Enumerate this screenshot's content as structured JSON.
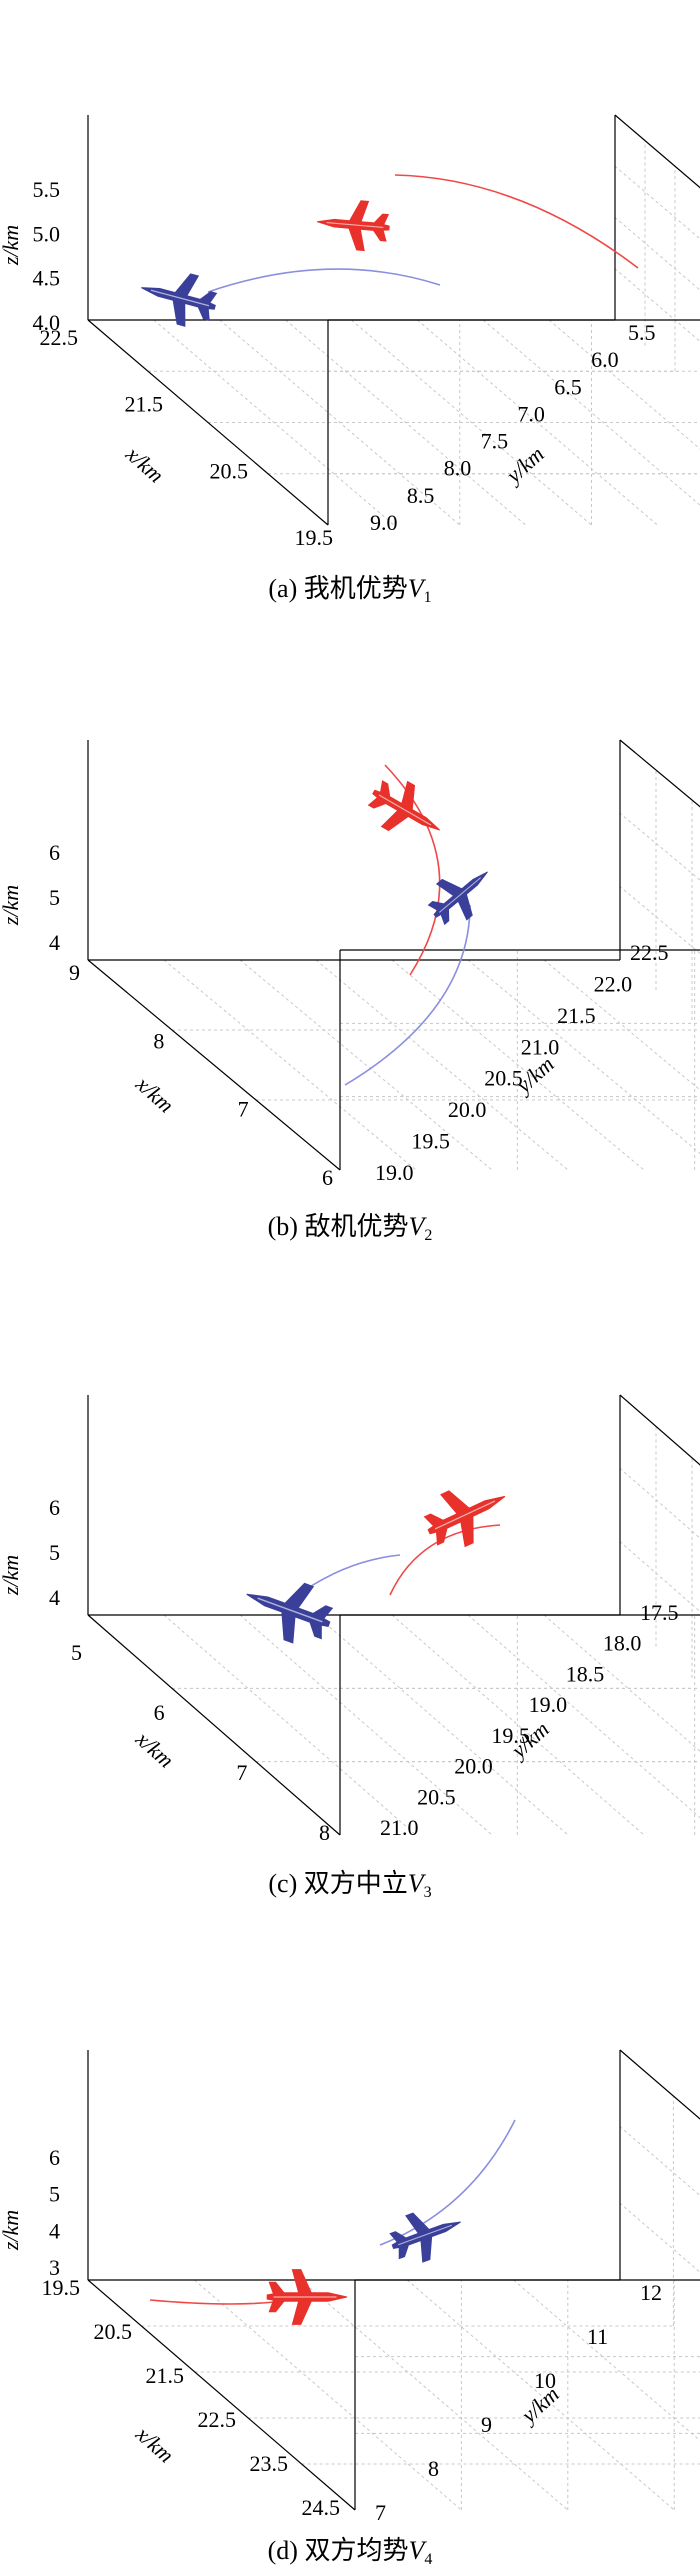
{
  "chart_data": [
    {
      "type": "scatter",
      "caption": {
        "prefix": "(a) 我机优势",
        "var": "V",
        "sub": "1"
      },
      "xlabel": "x/km",
      "ylabel": "y/km",
      "zlabel": "z/km",
      "x_ticks": [
        "22.5",
        "21.5",
        "20.5",
        "19.5"
      ],
      "y_ticks": [
        "5.5",
        "6.0",
        "6.5",
        "7.0",
        "7.5",
        "8.0",
        "8.5",
        "9.0"
      ],
      "z_ticks": [
        "5.5",
        "5.0",
        "4.5",
        "4.0"
      ],
      "grid": true,
      "series": []
    },
    {
      "type": "scatter",
      "caption": {
        "prefix": "(b) 敌机优势",
        "var": "V",
        "sub": "2"
      },
      "xlabel": "x/km",
      "ylabel": "y/km",
      "zlabel": "z/km",
      "x_ticks": [
        "9",
        "8",
        "7",
        "6"
      ],
      "y_ticks": [
        "22.5",
        "22.0",
        "21.5",
        "21.0",
        "20.5",
        "20.0",
        "19.5",
        "19.0"
      ],
      "z_ticks": [
        "6",
        "5",
        "4"
      ],
      "grid": true,
      "series": []
    },
    {
      "type": "scatter",
      "caption": {
        "prefix": "(c) 双方中立",
        "var": "V",
        "sub": "3"
      },
      "xlabel": "x/km",
      "ylabel": "y/km",
      "zlabel": "z/km",
      "x_ticks": [
        "5",
        "6",
        "7",
        "8"
      ],
      "y_ticks": [
        "17.5",
        "18.0",
        "18.5",
        "19.0",
        "19.5",
        "20.0",
        "20.5",
        "21.0"
      ],
      "z_ticks": [
        "6",
        "5",
        "4"
      ],
      "grid": true,
      "series": []
    },
    {
      "type": "scatter",
      "caption": {
        "prefix": "(d) 双方均势",
        "var": "V",
        "sub": "4"
      },
      "xlabel": "x/km",
      "ylabel": "y/km",
      "zlabel": "z/km",
      "x_ticks": [
        "19.5",
        "20.5",
        "21.5",
        "22.5",
        "23.5",
        "24.5"
      ],
      "y_ticks": [
        "12",
        "11",
        "10",
        "9",
        "8",
        "7"
      ],
      "z_ticks": [
        "6",
        "5",
        "4",
        "3"
      ],
      "grid": true,
      "series": []
    }
  ],
  "colors": {
    "red_aircraft": "#e8312a",
    "blue_aircraft": "#3a3f9a",
    "red_track": "#f04848",
    "blue_track": "#8a8ee0",
    "grid": "#c8c8c8",
    "axis": "#000000"
  },
  "icons": {
    "aircraft": "fighter-jet-icon"
  }
}
